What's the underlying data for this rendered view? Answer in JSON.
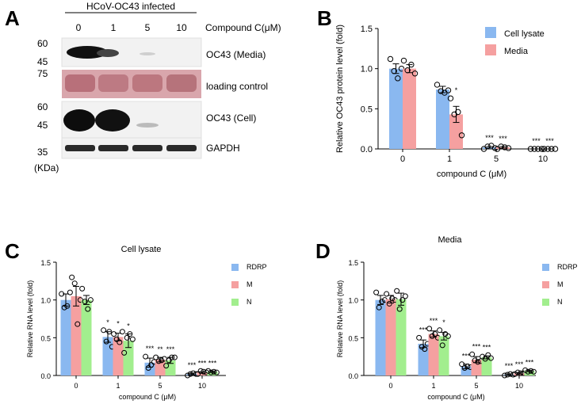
{
  "panels": {
    "A": {
      "letter": "A",
      "header": "HCoV-OC43 infected",
      "concentrations": [
        "0",
        "1",
        "5",
        "10"
      ],
      "concentration_label": "Compound C(μM)",
      "rows": [
        {
          "label": "OC43 (Media)",
          "markers": [
            "60",
            "45"
          ]
        },
        {
          "label": "loading control",
          "markers": [
            "75"
          ]
        },
        {
          "label": "OC43 (Cell)",
          "markers": [
            "60",
            "45"
          ]
        },
        {
          "label": "GAPDH",
          "markers": [
            "35"
          ]
        }
      ],
      "unit": "(KDa)"
    },
    "B": {
      "letter": "B"
    },
    "C": {
      "letter": "C"
    },
    "D": {
      "letter": "D"
    }
  },
  "colors": {
    "blue": "#8ab8f0",
    "red": "#f5a0a0",
    "green": "#a2ee8e"
  },
  "chart_data": [
    {
      "id": "B",
      "type": "bar",
      "title": "",
      "xlabel": "compound C (μM)",
      "ylabel": "Relative OC43 protein level (fold)",
      "ylim": [
        0,
        1.5
      ],
      "yticks": [
        "0.0",
        "0.5",
        "1.0",
        "1.5"
      ],
      "categories": [
        "0",
        "1",
        "5",
        "10"
      ],
      "legend_position": "top-right",
      "series": [
        {
          "name": "Cell lysate",
          "color": "blue",
          "values": [
            1.0,
            0.74,
            0.02,
            0.0
          ],
          "errors": [
            0.06,
            0.04,
            0.01,
            0.0
          ],
          "points": [
            [
              1.12,
              0.97,
              0.88,
              1.0
            ],
            [
              0.8,
              0.72,
              0.7,
              0.73
            ],
            [
              0.0,
              0.03,
              0.04,
              0.01
            ],
            [
              0.0,
              0.0,
              0.0,
              0.0
            ]
          ]
        },
        {
          "name": "Media",
          "color": "red",
          "values": [
            1.0,
            0.43,
            0.02,
            0.0
          ],
          "errors": [
            0.05,
            0.1,
            0.01,
            0.0
          ],
          "points": [
            [
              1.1,
              0.98,
              1.05,
              0.94
            ],
            [
              0.63,
              0.43,
              0.46,
              0.17
            ],
            [
              0.0,
              0.03,
              0.02,
              0.01
            ],
            [
              0.0,
              0.0,
              0.0,
              0.0
            ]
          ]
        }
      ],
      "annotations": [
        {
          "group": 1,
          "series": 1,
          "text": "*"
        },
        {
          "group": 2,
          "series": 0,
          "text": "***"
        },
        {
          "group": 2,
          "series": 1,
          "text": "***"
        },
        {
          "group": 3,
          "series": 0,
          "text": "***"
        },
        {
          "group": 3,
          "series": 1,
          "text": "***"
        }
      ]
    },
    {
      "id": "C",
      "type": "bar",
      "title": "Cell lysate",
      "xlabel": "compound C (μM)",
      "ylabel": "Relative RNA level (fold)",
      "ylim": [
        0,
        1.5
      ],
      "yticks": [
        "0.0",
        "0.5",
        "1.0",
        "1.5"
      ],
      "categories": [
        "0",
        "1",
        "5",
        "10"
      ],
      "legend_position": "top-right",
      "series": [
        {
          "name": "RDRP",
          "color": "blue",
          "values": [
            1.0,
            0.51,
            0.17,
            0.02
          ],
          "errors": [
            0.08,
            0.07,
            0.06,
            0.01
          ],
          "points": [
            [
              1.08,
              0.9,
              0.92,
              1.1
            ],
            [
              0.6,
              0.45,
              0.58,
              0.38
            ],
            [
              0.25,
              0.1,
              0.14,
              0.18
            ],
            [
              0.0,
              0.02,
              0.03,
              0.02
            ]
          ]
        },
        {
          "name": "M",
          "color": "red",
          "values": [
            1.05,
            0.51,
            0.21,
            0.04
          ],
          "errors": [
            0.13,
            0.05,
            0.03,
            0.01
          ],
          "points": [
            [
              1.3,
              1.22,
              0.68,
              1.0
            ],
            [
              0.55,
              0.48,
              0.44,
              0.58
            ],
            [
              0.24,
              0.19,
              0.2,
              0.22
            ],
            [
              0.02,
              0.06,
              0.05,
              0.04
            ]
          ]
        },
        {
          "name": "N",
          "color": "green",
          "values": [
            1.0,
            0.46,
            0.2,
            0.05
          ],
          "errors": [
            0.06,
            0.09,
            0.04,
            0.01
          ],
          "points": [
            [
              1.15,
              0.98,
              0.88,
              1.0
            ],
            [
              0.3,
              0.5,
              0.55,
              0.48
            ],
            [
              0.13,
              0.2,
              0.24,
              0.24
            ],
            [
              0.06,
              0.04,
              0.05,
              0.04
            ]
          ]
        }
      ],
      "annotations": [
        {
          "group": 1,
          "series": 0,
          "text": "*"
        },
        {
          "group": 1,
          "series": 1,
          "text": "*"
        },
        {
          "group": 1,
          "series": 2,
          "text": "*"
        },
        {
          "group": 2,
          "series": 0,
          "text": "***"
        },
        {
          "group": 2,
          "series": 1,
          "text": "**"
        },
        {
          "group": 2,
          "series": 2,
          "text": "***"
        },
        {
          "group": 3,
          "series": 0,
          "text": "***"
        },
        {
          "group": 3,
          "series": 1,
          "text": "***"
        },
        {
          "group": 3,
          "series": 2,
          "text": "***"
        }
      ]
    },
    {
      "id": "D",
      "type": "bar",
      "title": "Media",
      "xlabel": "compound C (μM)",
      "ylabel": "Relative RNA level (fold)",
      "ylim": [
        0,
        1.5
      ],
      "yticks": [
        "0.0",
        "0.5",
        "1.0",
        "1.5"
      ],
      "categories": [
        "0",
        "1",
        "5",
        "10"
      ],
      "legend_position": "top-right",
      "series": [
        {
          "name": "RDRP",
          "color": "blue",
          "values": [
            1.0,
            0.42,
            0.12,
            0.01
          ],
          "errors": [
            0.06,
            0.05,
            0.03,
            0.01
          ],
          "points": [
            [
              1.1,
              0.9,
              0.98,
              1.0
            ],
            [
              0.5,
              0.38,
              0.35,
              0.42
            ],
            [
              0.15,
              0.1,
              0.12,
              0.11
            ],
            [
              0.0,
              0.01,
              0.02,
              0.01
            ]
          ]
        },
        {
          "name": "M",
          "color": "red",
          "values": [
            1.01,
            0.55,
            0.21,
            0.03
          ],
          "errors": [
            0.05,
            0.04,
            0.04,
            0.01
          ],
          "points": [
            [
              1.08,
              0.95,
              1.02,
              1.0
            ],
            [
              0.62,
              0.52,
              0.55,
              0.5
            ],
            [
              0.28,
              0.2,
              0.18,
              0.19
            ],
            [
              0.02,
              0.04,
              0.03,
              0.03
            ]
          ]
        },
        {
          "name": "N",
          "color": "green",
          "values": [
            1.01,
            0.52,
            0.24,
            0.06
          ],
          "errors": [
            0.08,
            0.05,
            0.02,
            0.01
          ],
          "points": [
            [
              1.12,
              0.88,
              1.0,
              1.05
            ],
            [
              0.6,
              0.4,
              0.55,
              0.52
            ],
            [
              0.25,
              0.22,
              0.27,
              0.23
            ],
            [
              0.07,
              0.05,
              0.06,
              0.05
            ]
          ]
        }
      ],
      "annotations": [
        {
          "group": 1,
          "series": 0,
          "text": "***"
        },
        {
          "group": 1,
          "series": 1,
          "text": "***"
        },
        {
          "group": 1,
          "series": 2,
          "text": "*"
        },
        {
          "group": 2,
          "series": 0,
          "text": "***"
        },
        {
          "group": 2,
          "series": 1,
          "text": "***"
        },
        {
          "group": 2,
          "series": 2,
          "text": "***"
        },
        {
          "group": 3,
          "series": 0,
          "text": "***"
        },
        {
          "group": 3,
          "series": 1,
          "text": "***"
        },
        {
          "group": 3,
          "series": 2,
          "text": "***"
        }
      ]
    }
  ]
}
